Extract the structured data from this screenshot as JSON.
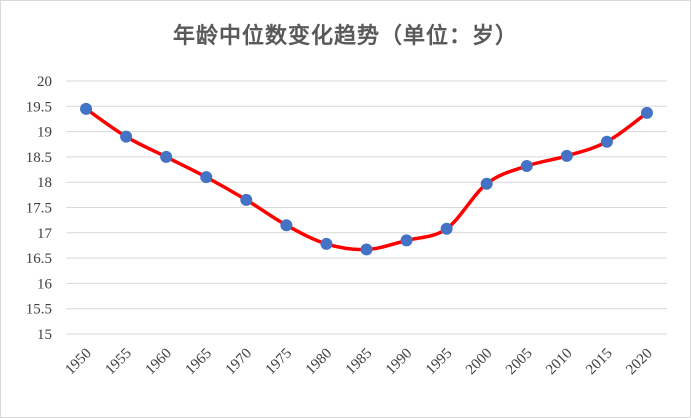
{
  "chart_data": {
    "type": "line",
    "title": "年龄中位数变化趋势（单位：岁）",
    "xlabel": "",
    "ylabel": "",
    "categories": [
      "1950",
      "1955",
      "1960",
      "1965",
      "1970",
      "1975",
      "1980",
      "1985",
      "1990",
      "1995",
      "2000",
      "2005",
      "2010",
      "2015",
      "2020"
    ],
    "series": [
      {
        "values": [
          19.45,
          18.9,
          18.5,
          18.1,
          17.65,
          17.15,
          16.78,
          16.67,
          16.85,
          17.08,
          17.97,
          18.32,
          18.52,
          18.8,
          19.37
        ],
        "line_color": "#ff0000",
        "marker_color": "#4472c4"
      }
    ],
    "ylim": [
      15,
      20
    ],
    "y_ticks": [
      "15",
      "15.5",
      "16",
      "16.5",
      "17",
      "17.5",
      "18",
      "18.5",
      "19",
      "19.5",
      "20"
    ],
    "grid": true,
    "smooth": true,
    "legend": "none"
  }
}
